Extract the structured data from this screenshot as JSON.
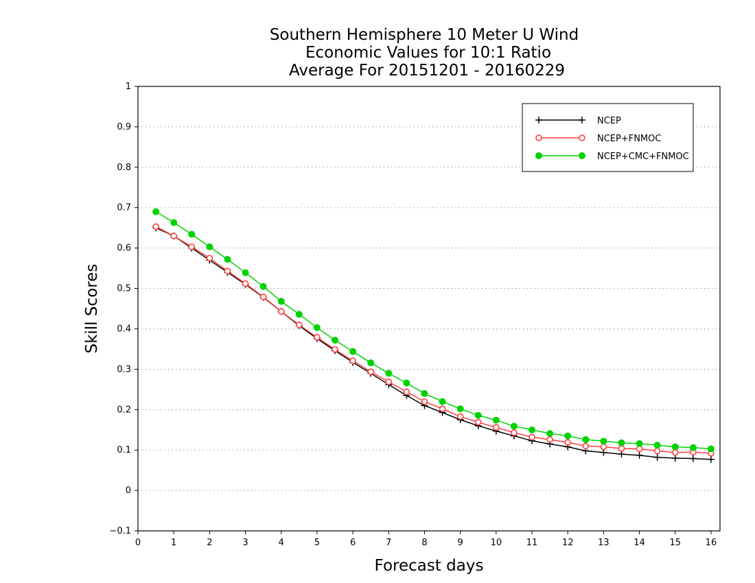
{
  "chart_data": {
    "type": "line",
    "title": [
      "Southern Hemisphere 10 Meter U Wind",
      "Economic Values for 10:1 Ratio",
      "Average For 20151201 - 20160229"
    ],
    "xlabel": "Forecast days",
    "ylabel": "Skill Scores",
    "xlim": [
      0,
      16.25
    ],
    "ylim": [
      -0.1,
      1
    ],
    "xticks": [
      0,
      1,
      2,
      3,
      4,
      5,
      6,
      7,
      8,
      9,
      10,
      11,
      12,
      13,
      14,
      15,
      16
    ],
    "xtick_labels": [
      "0",
      "1",
      "2",
      "3",
      "4",
      "5",
      "6",
      "7",
      "8",
      "9",
      "10",
      "11",
      "12",
      "13",
      "14",
      "15",
      "16"
    ],
    "yticks": [
      -0.1,
      0,
      0.1,
      0.2,
      0.3,
      0.4,
      0.5,
      0.6,
      0.7,
      0.8,
      0.9,
      1
    ],
    "ytick_labels": [
      "−0.1",
      "0",
      "0.1",
      "0.2",
      "0.3",
      "0.4",
      "0.5",
      "0.6",
      "0.7",
      "0.8",
      "0.9",
      "1"
    ],
    "grid": "horizontal-dotted",
    "legend_position": "top-right",
    "x": [
      0.5,
      1,
      1.5,
      2,
      2.5,
      3,
      3.5,
      4,
      4.5,
      5,
      5.5,
      6,
      6.5,
      7,
      7.5,
      8,
      8.5,
      9,
      9.5,
      10,
      10.5,
      11,
      11.5,
      12,
      12.5,
      13,
      13.5,
      14,
      14.5,
      15,
      15.5,
      16
    ],
    "series": [
      {
        "name": "NCEP",
        "color": "#000000",
        "marker": "plus",
        "values": [
          0.65,
          0.63,
          0.6,
          0.57,
          0.54,
          0.51,
          0.478,
          0.443,
          0.408,
          0.376,
          0.346,
          0.317,
          0.29,
          0.262,
          0.235,
          0.21,
          0.193,
          0.175,
          0.16,
          0.147,
          0.135,
          0.123,
          0.115,
          0.108,
          0.098,
          0.094,
          0.09,
          0.087,
          0.082,
          0.08,
          0.079,
          0.077
        ]
      },
      {
        "name": "NCEP+FNMOC",
        "color": "#ff3c3c",
        "marker": "open-circle",
        "values": [
          0.653,
          0.63,
          0.603,
          0.575,
          0.543,
          0.512,
          0.479,
          0.443,
          0.41,
          0.379,
          0.349,
          0.321,
          0.294,
          0.269,
          0.244,
          0.22,
          0.202,
          0.183,
          0.169,
          0.156,
          0.143,
          0.132,
          0.126,
          0.119,
          0.11,
          0.108,
          0.104,
          0.103,
          0.098,
          0.094,
          0.095,
          0.092
        ]
      },
      {
        "name": "NCEP+CMC+FNMOC",
        "color": "#00d200",
        "marker": "filled-circle",
        "values": [
          0.69,
          0.663,
          0.634,
          0.603,
          0.572,
          0.539,
          0.505,
          0.468,
          0.436,
          0.403,
          0.372,
          0.344,
          0.316,
          0.29,
          0.266,
          0.24,
          0.22,
          0.202,
          0.186,
          0.174,
          0.159,
          0.15,
          0.141,
          0.135,
          0.126,
          0.122,
          0.118,
          0.116,
          0.112,
          0.108,
          0.106,
          0.103
        ]
      }
    ]
  }
}
